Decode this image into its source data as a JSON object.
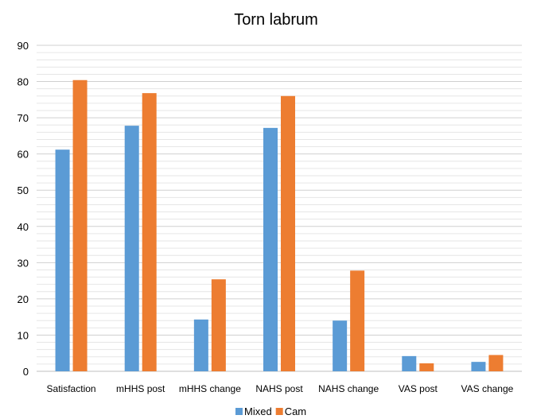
{
  "chart_data": {
    "type": "bar",
    "title": "Torn labrum",
    "xlabel": "",
    "ylabel": "",
    "ylim": [
      0,
      90
    ],
    "yticks": [
      0,
      10,
      20,
      30,
      40,
      50,
      60,
      70,
      80,
      90
    ],
    "minor_grid_step": 2,
    "grid": true,
    "legend_position": "bottom",
    "categories": [
      "Satisfaction",
      "mHHS post",
      "mHHS change",
      "NAHS post",
      "NAHS change",
      "VAS post",
      "VAS change"
    ],
    "series": [
      {
        "name": "Mixed",
        "color": "#5b9bd5",
        "values": [
          61.2,
          67.8,
          14.3,
          67.2,
          14.0,
          4.2,
          2.6
        ]
      },
      {
        "name": "Cam",
        "color": "#ed7d31",
        "values": [
          80.4,
          76.8,
          25.4,
          76.0,
          27.8,
          2.2,
          4.5
        ]
      }
    ]
  }
}
